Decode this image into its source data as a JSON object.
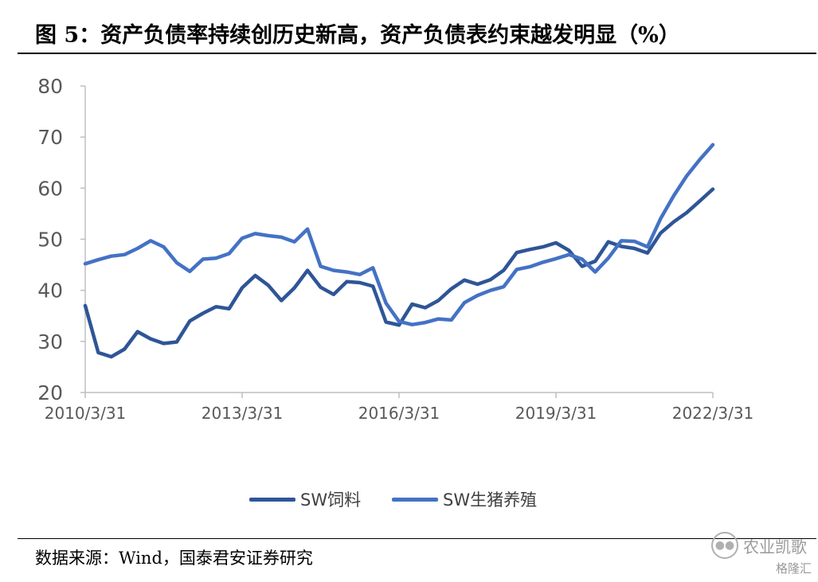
{
  "header": {
    "title": "图 5：资产负债率持续创历史新高，资产负债表约束越发明显（%）"
  },
  "footer": {
    "source": "数据来源：Wind，国泰君安证券研究"
  },
  "watermark": {
    "icon": "wechat-icon",
    "account": "农业凯歌",
    "site": "格隆汇"
  },
  "chart_data": {
    "type": "line",
    "title": "",
    "xlabel": "",
    "ylabel": "",
    "ylim": [
      20,
      80
    ],
    "yticks": [
      "20",
      "30",
      "40",
      "50",
      "60",
      "70",
      "80"
    ],
    "xticks": [
      "2010/3/31",
      "2013/3/31",
      "2016/3/31",
      "2019/3/31",
      "2022/3/31"
    ],
    "grid": false,
    "legend_position": "bottom",
    "x": [
      "2010Q1",
      "2010Q2",
      "2010Q3",
      "2010Q4",
      "2011Q1",
      "2011Q2",
      "2011Q3",
      "2011Q4",
      "2012Q1",
      "2012Q2",
      "2012Q3",
      "2012Q4",
      "2013Q1",
      "2013Q2",
      "2013Q3",
      "2013Q4",
      "2014Q1",
      "2014Q2",
      "2014Q3",
      "2014Q4",
      "2015Q1",
      "2015Q2",
      "2015Q3",
      "2015Q4",
      "2016Q1",
      "2016Q2",
      "2016Q3",
      "2016Q4",
      "2017Q1",
      "2017Q2",
      "2017Q3",
      "2017Q4",
      "2018Q1",
      "2018Q2",
      "2018Q3",
      "2018Q4",
      "2019Q1",
      "2019Q2",
      "2019Q3",
      "2019Q4",
      "2020Q1",
      "2020Q2",
      "2020Q3",
      "2020Q4",
      "2021Q1",
      "2021Q2",
      "2021Q3",
      "2021Q4",
      "2022Q1"
    ],
    "series": [
      {
        "name": "SW饲料",
        "color": "#2f5597",
        "values": [
          37.0,
          27.8,
          27.0,
          28.5,
          31.9,
          30.5,
          29.6,
          29.9,
          34.0,
          35.5,
          36.8,
          36.4,
          40.5,
          42.9,
          41.0,
          38.0,
          40.5,
          43.9,
          40.6,
          39.2,
          41.7,
          41.5,
          40.8,
          33.8,
          33.2,
          37.3,
          36.6,
          38.0,
          40.3,
          42.0,
          41.2,
          42.1,
          43.9,
          47.4,
          48.0,
          48.5,
          49.3,
          47.8,
          44.7,
          45.7,
          49.5,
          48.6,
          48.2,
          47.3,
          51.2,
          53.4,
          55.2,
          57.5,
          59.8
        ]
      },
      {
        "name": "SW生猪养殖",
        "color": "#4472c4",
        "values": [
          45.2,
          46.0,
          46.7,
          47.0,
          48.2,
          49.7,
          48.5,
          45.4,
          43.7,
          46.1,
          46.3,
          47.2,
          50.2,
          51.1,
          50.7,
          50.4,
          49.5,
          52.0,
          44.7,
          43.9,
          43.6,
          43.1,
          44.4,
          37.5,
          33.9,
          33.3,
          33.7,
          34.4,
          34.2,
          37.6,
          39.0,
          40.0,
          40.7,
          44.1,
          44.6,
          45.5,
          46.2,
          47.0,
          46.1,
          43.6,
          46.3,
          49.7,
          49.6,
          48.5,
          54.0,
          58.5,
          62.4,
          65.6,
          68.5
        ]
      }
    ]
  }
}
